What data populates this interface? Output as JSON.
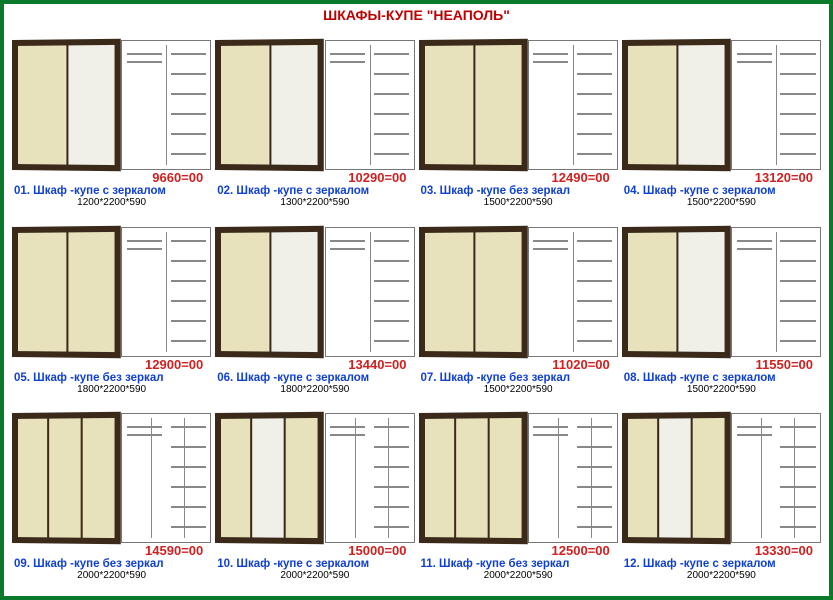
{
  "page_title": "ШКАФЫ-КУПЕ \"НЕАПОЛЬ\"",
  "colors": {
    "border": "#0a7a2a",
    "price": "#d02020",
    "label": "#1040d0",
    "title": "#c00000",
    "wardrobe_frame": "#3b2a1a",
    "wardrobe_panel": "#e8e2bc"
  },
  "items": [
    {
      "num": "01.",
      "name": "Шкаф -купе с зеркалом",
      "price": "9660=00",
      "dims": "1200*2200*590",
      "doors": 2,
      "mirror": true
    },
    {
      "num": "02.",
      "name": "Шкаф -купе с зеркалом",
      "price": "10290=00",
      "dims": "1300*2200*590",
      "doors": 2,
      "mirror": true
    },
    {
      "num": "03.",
      "name": "Шкаф -купе без зеркал",
      "price": "12490=00",
      "dims": "1500*2200*590",
      "doors": 2,
      "mirror": false
    },
    {
      "num": "04.",
      "name": "Шкаф -купе с зеркалом",
      "price": "13120=00",
      "dims": "1500*2200*590",
      "doors": 2,
      "mirror": true
    },
    {
      "num": "05.",
      "name": "Шкаф -купе без зеркал",
      "price": "12900=00",
      "dims": "1800*2200*590",
      "doors": 2,
      "mirror": false
    },
    {
      "num": "06.",
      "name": "Шкаф -купе с зеркалом",
      "price": "13440=00",
      "dims": "1800*2200*590",
      "doors": 2,
      "mirror": true
    },
    {
      "num": "07.",
      "name": "Шкаф -купе без зеркал",
      "price": "11020=00",
      "dims": "1500*2200*590",
      "doors": 2,
      "mirror": false
    },
    {
      "num": "08.",
      "name": "Шкаф -купе с зеркалом",
      "price": "11550=00",
      "dims": "1500*2200*590",
      "doors": 2,
      "mirror": true
    },
    {
      "num": "09.",
      "name": "Шкаф -купе без зеркал",
      "price": "14590=00",
      "dims": "2000*2200*590",
      "doors": 3,
      "mirror": false
    },
    {
      "num": "10.",
      "name": "Шкаф -купе с зеркалом",
      "price": "15000=00",
      "dims": "2000*2200*590",
      "doors": 3,
      "mirror": true
    },
    {
      "num": "11.",
      "name": "Шкаф -купе без зеркал",
      "price": "12500=00",
      "dims": "2000*2200*590",
      "doors": 3,
      "mirror": false
    },
    {
      "num": "12.",
      "name": "Шкаф -купе с зеркалом",
      "price": "13330=00",
      "dims": "2000*2200*590",
      "doors": 3,
      "mirror": true
    }
  ]
}
